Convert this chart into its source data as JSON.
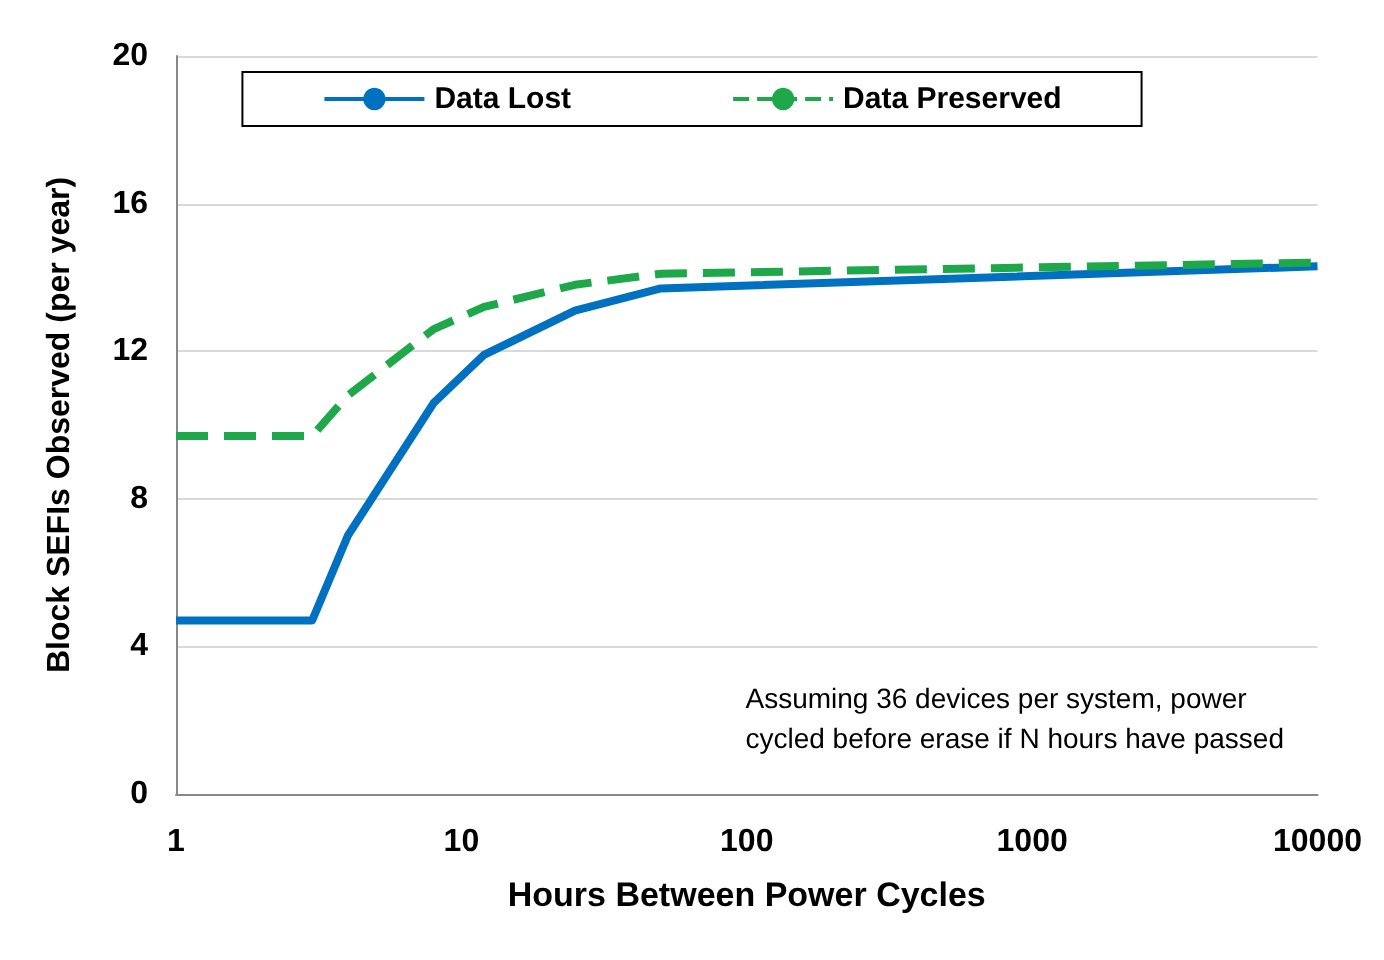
{
  "chart_data": {
    "type": "line",
    "xlabel": "Hours Between Power Cycles",
    "ylabel": "Block SEFIs Observed (per year)",
    "log": "x",
    "xlim": [
      1,
      10000
    ],
    "xticks": [
      1,
      10,
      100,
      1000,
      10000
    ],
    "ylim": [
      0,
      20
    ],
    "yticks": [
      0,
      4,
      8,
      12,
      16,
      20
    ],
    "grid": "y",
    "legend": "top",
    "marker": "none",
    "annotations": [
      "Assuming 36 devices per system, power cycled before erase if N hours have passed"
    ],
    "series": [
      {
        "name": "Data Lost",
        "color": "#0070c0",
        "line_style": "solid",
        "x": [
          1,
          3,
          4,
          8,
          12,
          25,
          50,
          10000
        ],
        "values": [
          4.7,
          4.7,
          7,
          10.6,
          11.9,
          13.1,
          13.7,
          14.3
        ]
      },
      {
        "name": "Data Preserved",
        "color": "#1fa84a",
        "line_style": "dashed",
        "x": [
          1,
          3,
          4,
          8,
          12,
          25,
          50,
          10000
        ],
        "values": [
          9.7,
          9.7,
          10.8,
          12.6,
          13.2,
          13.8,
          14.1,
          14.4
        ]
      }
    ]
  }
}
